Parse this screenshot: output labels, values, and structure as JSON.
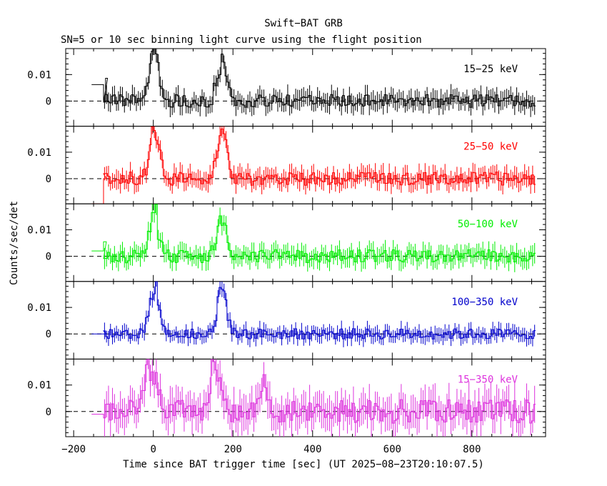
{
  "chart_data": {
    "type": "line",
    "title": "Swift−BAT GRB",
    "subtitle": "SN=5 or 10 sec binning light curve using the flight position",
    "xlabel": "Time since BAT trigger time [sec] (UT 2025−08−23T20:10:07.5)",
    "ylabel": "Counts/sec/det",
    "xlim": [
      -220,
      985
    ],
    "ylim": [
      -0.0095,
      0.0198
    ],
    "x_ticks": [
      -200,
      0,
      200,
      400,
      600,
      800
    ],
    "x_tick_labels": [
      "−200",
      "0",
      "200",
      "400",
      "600",
      "800"
    ],
    "y_ticks": [
      0,
      0.01
    ],
    "y_tick_labels": [
      "0",
      "0.01"
    ],
    "zero_line": "dashed",
    "panels": [
      {
        "band": "15−25 keV",
        "color": "#000000",
        "segments": [
          [
            -155,
            -125,
            0.0062
          ],
          [
            -125,
            -120,
            0.0
          ],
          [
            -120,
            -115,
            0.0086
          ]
        ],
        "bursts": [
          [
            -10,
            15,
            0.0198
          ],
          [
            160,
            185,
            0.016
          ]
        ],
        "noise": 0.0025,
        "seed": 1
      },
      {
        "band": "25−50 keV",
        "color": "#ff0000",
        "segments": [
          [
            -155,
            -125,
            -0.0095
          ],
          [
            -125,
            -118,
            0.0
          ]
        ],
        "bursts": [
          [
            -10,
            15,
            0.0198
          ],
          [
            160,
            185,
            0.0198
          ]
        ],
        "noise": 0.0025,
        "seed": 2
      },
      {
        "band": "50−100 keV",
        "color": "#00ee00",
        "segments": [
          [
            -155,
            -125,
            0.002
          ],
          [
            -125,
            -118,
            0.0055
          ]
        ],
        "bursts": [
          [
            -10,
            15,
            0.0198
          ],
          [
            160,
            185,
            0.0165
          ]
        ],
        "noise": 0.0025,
        "seed": 3
      },
      {
        "band": "100−350 keV",
        "color": "#0000cc",
        "segments": [
          [
            -155,
            -125,
            0.0
          ],
          [
            -125,
            -118,
            0.0
          ]
        ],
        "bursts": [
          [
            -10,
            15,
            0.0198
          ],
          [
            160,
            185,
            0.018
          ]
        ],
        "noise": 0.002,
        "seed": 4
      },
      {
        "band": "15−350 keV",
        "color": "#dd33dd",
        "segments": [
          [
            -155,
            -125,
            -0.001
          ]
        ],
        "bursts": [
          [
            -30,
            20,
            0.0198
          ],
          [
            140,
            170,
            0.0198
          ],
          [
            270,
            285,
            0.01
          ]
        ],
        "noise": 0.0045,
        "seed": 5
      }
    ],
    "bin_width_sec": 5,
    "data_start_sec": -125,
    "data_end_sec": 960
  }
}
